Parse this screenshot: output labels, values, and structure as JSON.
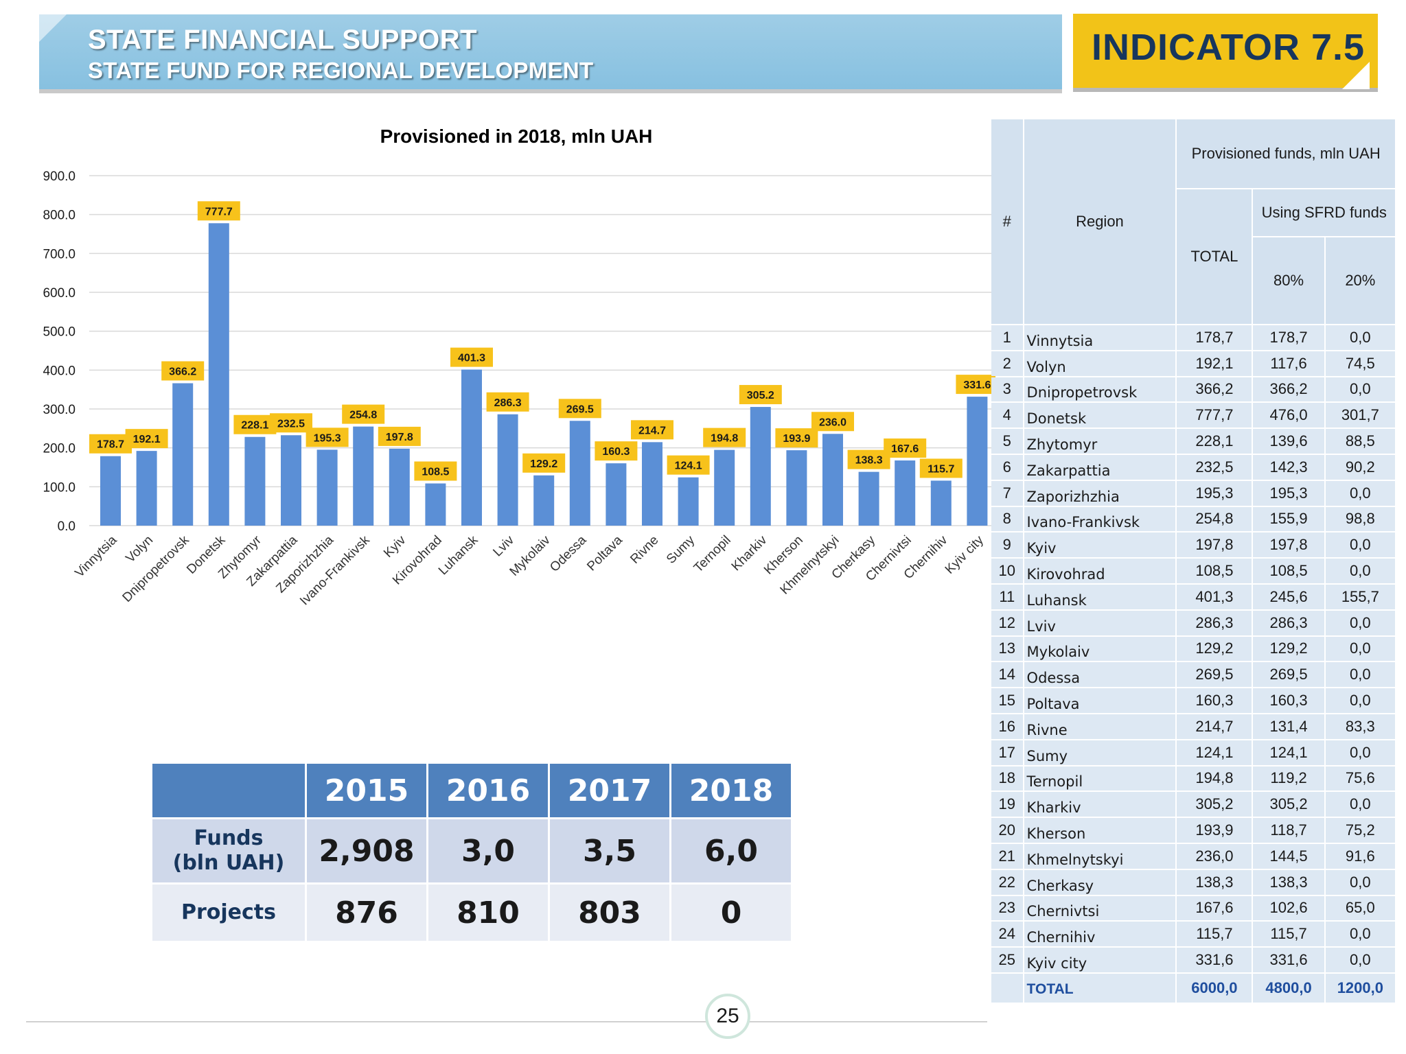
{
  "header": {
    "title": "STATE FINANCIAL SUPPORT",
    "subtitle": "STATE FUND FOR REGIONAL DEVELOPMENT",
    "indicator": "INDICATOR 7.5"
  },
  "chart_data": {
    "type": "bar",
    "title": "Provisioned in 2018, mln UAH",
    "xlabel": "",
    "ylabel": "",
    "ylim": [
      0,
      900
    ],
    "yticks": [
      "0.0",
      "100.0",
      "200.0",
      "300.0",
      "400.0",
      "500.0",
      "600.0",
      "700.0",
      "800.0",
      "900.0"
    ],
    "grid": true,
    "categories": [
      "Vinnytsia",
      "Volyn",
      "Dnipropetrovsk",
      "Donetsk",
      "Zhytomyr",
      "Zakarpattia",
      "Zaporizhzhia",
      "Ivano-Frankivsk",
      "Kyiv",
      "Kirovohrad",
      "Luhansk",
      "Lviv",
      "Mykolaiv",
      "Odessa",
      "Poltava",
      "Rivne",
      "Sumy",
      "Ternopil",
      "Kharkiv",
      "Kherson",
      "Khmelnytskyi",
      "Cherkasy",
      "Chernivtsi",
      "Chernihiv",
      "Kyiv city"
    ],
    "values": [
      178.7,
      192.1,
      366.2,
      777.7,
      228.1,
      232.5,
      195.3,
      254.8,
      197.8,
      108.5,
      401.3,
      286.3,
      129.2,
      269.5,
      160.3,
      214.7,
      124.1,
      194.8,
      305.2,
      193.9,
      236.0,
      138.3,
      167.6,
      115.7,
      331.6
    ],
    "value_labels": [
      "178.7",
      "192.1",
      "366.2",
      "777.7",
      "228.1",
      "232.5",
      "195.3",
      "254.8",
      "197.8",
      "108.5",
      "401.3",
      "286.3",
      "129.2",
      "269.5",
      "160.3",
      "214.7",
      "124.1",
      "194.8",
      "305.2",
      "193.9",
      "236.0",
      "138.3",
      "167.6",
      "115.7",
      "331.6"
    ],
    "colors": {
      "bar": "#5b8fd6",
      "label_bg": "#f7c21b"
    }
  },
  "summary": {
    "years": [
      "2015",
      "2016",
      "2017",
      "2018"
    ],
    "funds_label_1": "Funds",
    "funds_label_2": "(bln UAH)",
    "funds": [
      "2,908",
      "3,0",
      "3,5",
      "6,0"
    ],
    "projects_label": "Projects",
    "projects": [
      "876",
      "810",
      "803",
      "0"
    ]
  },
  "region_table": {
    "headers": {
      "num": "#",
      "region": "Region",
      "provisioned": "Provisioned funds, mln UAH",
      "total": "TOTAL",
      "using": "Using SFRD funds",
      "p80": "80%",
      "p20": "20%"
    },
    "rows": [
      {
        "n": "1",
        "region": "Vinnytsia",
        "total": "178,7",
        "p80": "178,7",
        "p20": "0,0"
      },
      {
        "n": "2",
        "region": "Volyn",
        "total": "192,1",
        "p80": "117,6",
        "p20": "74,5"
      },
      {
        "n": "3",
        "region": "Dnipropetrovsk",
        "total": "366,2",
        "p80": "366,2",
        "p20": "0,0"
      },
      {
        "n": "4",
        "region": "Donetsk",
        "total": "777,7",
        "p80": "476,0",
        "p20": "301,7"
      },
      {
        "n": "5",
        "region": "Zhytomyr",
        "total": "228,1",
        "p80": "139,6",
        "p20": "88,5"
      },
      {
        "n": "6",
        "region": "Zakarpattia",
        "total": "232,5",
        "p80": "142,3",
        "p20": "90,2"
      },
      {
        "n": "7",
        "region": "Zaporizhzhia",
        "total": "195,3",
        "p80": "195,3",
        "p20": "0,0"
      },
      {
        "n": "8",
        "region": "Ivano-Frankivsk",
        "total": "254,8",
        "p80": "155,9",
        "p20": "98,8"
      },
      {
        "n": "9",
        "region": "Kyiv",
        "total": "197,8",
        "p80": "197,8",
        "p20": "0,0"
      },
      {
        "n": "10",
        "region": "Kirovohrad",
        "total": "108,5",
        "p80": "108,5",
        "p20": "0,0"
      },
      {
        "n": "11",
        "region": "Luhansk",
        "total": "401,3",
        "p80": "245,6",
        "p20": "155,7"
      },
      {
        "n": "12",
        "region": "Lviv",
        "total": "286,3",
        "p80": "286,3",
        "p20": "0,0"
      },
      {
        "n": "13",
        "region": "Mykolaiv",
        "total": "129,2",
        "p80": "129,2",
        "p20": "0,0"
      },
      {
        "n": "14",
        "region": "Odessa",
        "total": "269,5",
        "p80": "269,5",
        "p20": "0,0"
      },
      {
        "n": "15",
        "region": "Poltava",
        "total": "160,3",
        "p80": "160,3",
        "p20": "0,0"
      },
      {
        "n": "16",
        "region": "Rivne",
        "total": "214,7",
        "p80": "131,4",
        "p20": "83,3"
      },
      {
        "n": "17",
        "region": "Sumy",
        "total": "124,1",
        "p80": "124,1",
        "p20": "0,0"
      },
      {
        "n": "18",
        "region": "Ternopil",
        "total": "194,8",
        "p80": "119,2",
        "p20": "75,6"
      },
      {
        "n": "19",
        "region": "Kharkiv",
        "total": "305,2",
        "p80": "305,2",
        "p20": "0,0"
      },
      {
        "n": "20",
        "region": "Kherson",
        "total": "193,9",
        "p80": "118,7",
        "p20": "75,2"
      },
      {
        "n": "21",
        "region": "Khmelnytskyi",
        "total": "236,0",
        "p80": "144,5",
        "p20": "91,6"
      },
      {
        "n": "22",
        "region": "Cherkasy",
        "total": "138,3",
        "p80": "138,3",
        "p20": "0,0"
      },
      {
        "n": "23",
        "region": "Chernivtsi",
        "total": "167,6",
        "p80": "102,6",
        "p20": "65,0"
      },
      {
        "n": "24",
        "region": "Chernihiv",
        "total": "115,7",
        "p80": "115,7",
        "p20": "0,0"
      },
      {
        "n": "25",
        "region": "Kyiv city",
        "total": "331,6",
        "p80": "331,6",
        "p20": "0,0"
      }
    ],
    "total_row": {
      "label": "TOTAL",
      "total": "6000,0",
      "p80": "4800,0",
      "p20": "1200,0"
    }
  },
  "footer": {
    "page_number": "25"
  }
}
